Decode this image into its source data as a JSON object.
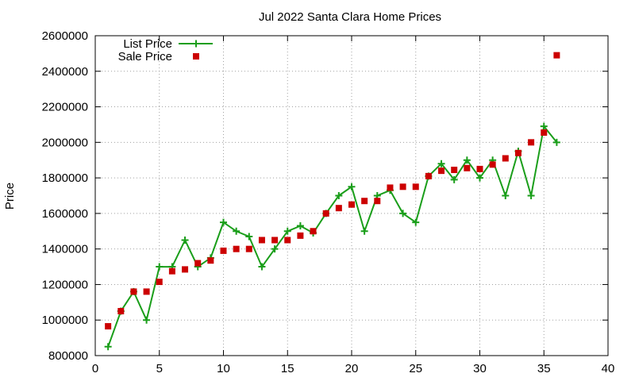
{
  "chart_data": {
    "type": "line",
    "title": "Jul 2022 Santa Clara Home Prices",
    "xlabel": "",
    "ylabel": "Price",
    "xlim": [
      0,
      40
    ],
    "ylim": [
      800000,
      2600000
    ],
    "xticks": [
      0,
      5,
      10,
      15,
      20,
      25,
      30,
      35,
      40
    ],
    "yticks": [
      800000,
      1000000,
      1200000,
      1400000,
      1600000,
      1800000,
      2000000,
      2200000,
      2400000,
      2600000
    ],
    "grid": true,
    "legend_position": "top-left",
    "series": [
      {
        "name": "List Price",
        "style": "line-with-plus-markers",
        "color": "#1a9e1a",
        "x": [
          1,
          2,
          3,
          4,
          5,
          6,
          7,
          8,
          9,
          10,
          11,
          12,
          13,
          14,
          15,
          16,
          17,
          18,
          19,
          20,
          21,
          22,
          23,
          24,
          25,
          26,
          27,
          28,
          29,
          30,
          31,
          32,
          33,
          34,
          35,
          36
        ],
        "values": [
          850000,
          1050000,
          1160000,
          1000000,
          1300000,
          1300000,
          1450000,
          1300000,
          1350000,
          1550000,
          1500000,
          1470000,
          1300000,
          1400000,
          1500000,
          1530000,
          1490000,
          1600000,
          1700000,
          1750000,
          1500000,
          1700000,
          1730000,
          1600000,
          1550000,
          1810000,
          1880000,
          1790000,
          1900000,
          1800000,
          1900000,
          1700000,
          1950000,
          1700000,
          2090000,
          2000000
        ]
      },
      {
        "name": "Sale Price",
        "style": "square-markers",
        "color": "#cc0000",
        "x": [
          1,
          2,
          3,
          4,
          5,
          6,
          7,
          8,
          9,
          10,
          11,
          12,
          13,
          14,
          15,
          16,
          17,
          18,
          19,
          20,
          21,
          22,
          23,
          24,
          25,
          26,
          27,
          28,
          29,
          30,
          31,
          32,
          33,
          34,
          35,
          36
        ],
        "values": [
          965000,
          1050000,
          1160000,
          1160000,
          1215000,
          1275000,
          1285000,
          1320000,
          1335000,
          1390000,
          1400000,
          1400000,
          1450000,
          1450000,
          1450000,
          1475000,
          1500000,
          1600000,
          1630000,
          1650000,
          1670000,
          1670000,
          1745000,
          1750000,
          1750000,
          1810000,
          1840000,
          1845000,
          1855000,
          1850000,
          1875000,
          1910000,
          1940000,
          2000000,
          2055000,
          2490000
        ]
      }
    ]
  }
}
